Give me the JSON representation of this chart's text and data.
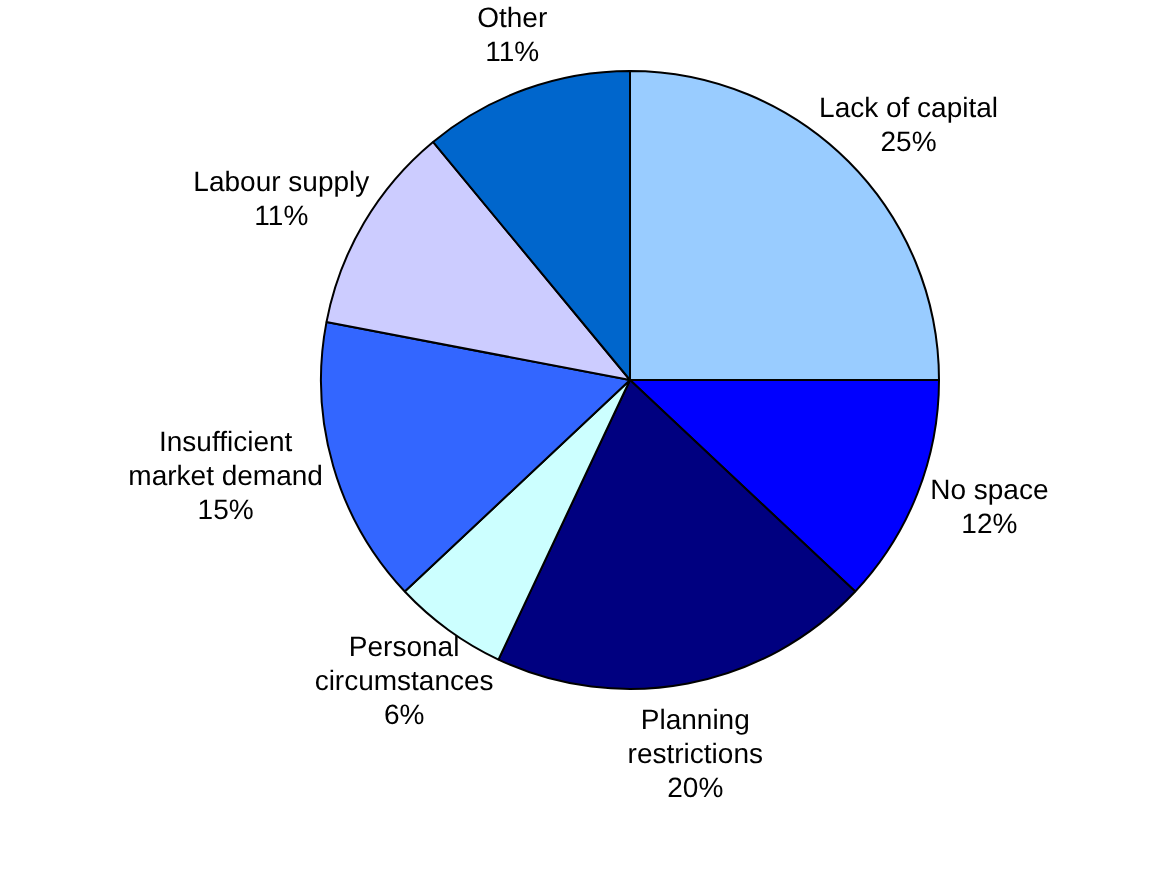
{
  "chart_data": {
    "type": "pie",
    "categories": [
      "Lack of capital",
      "No space",
      "Planning restrictions",
      "Personal circumstances",
      "Insufficient market demand",
      "Labour supply",
      "Other"
    ],
    "values": [
      25,
      12,
      20,
      6,
      15,
      11,
      11
    ],
    "value_labels": [
      "25%",
      "12%",
      "20%",
      "6%",
      "15%",
      "11%",
      "11%"
    ],
    "colors": [
      "#99ccff",
      "#0000ff",
      "#000080",
      "#ccffff",
      "#3366ff",
      "#ccccff",
      "#0066cc"
    ],
    "legend": false
  }
}
